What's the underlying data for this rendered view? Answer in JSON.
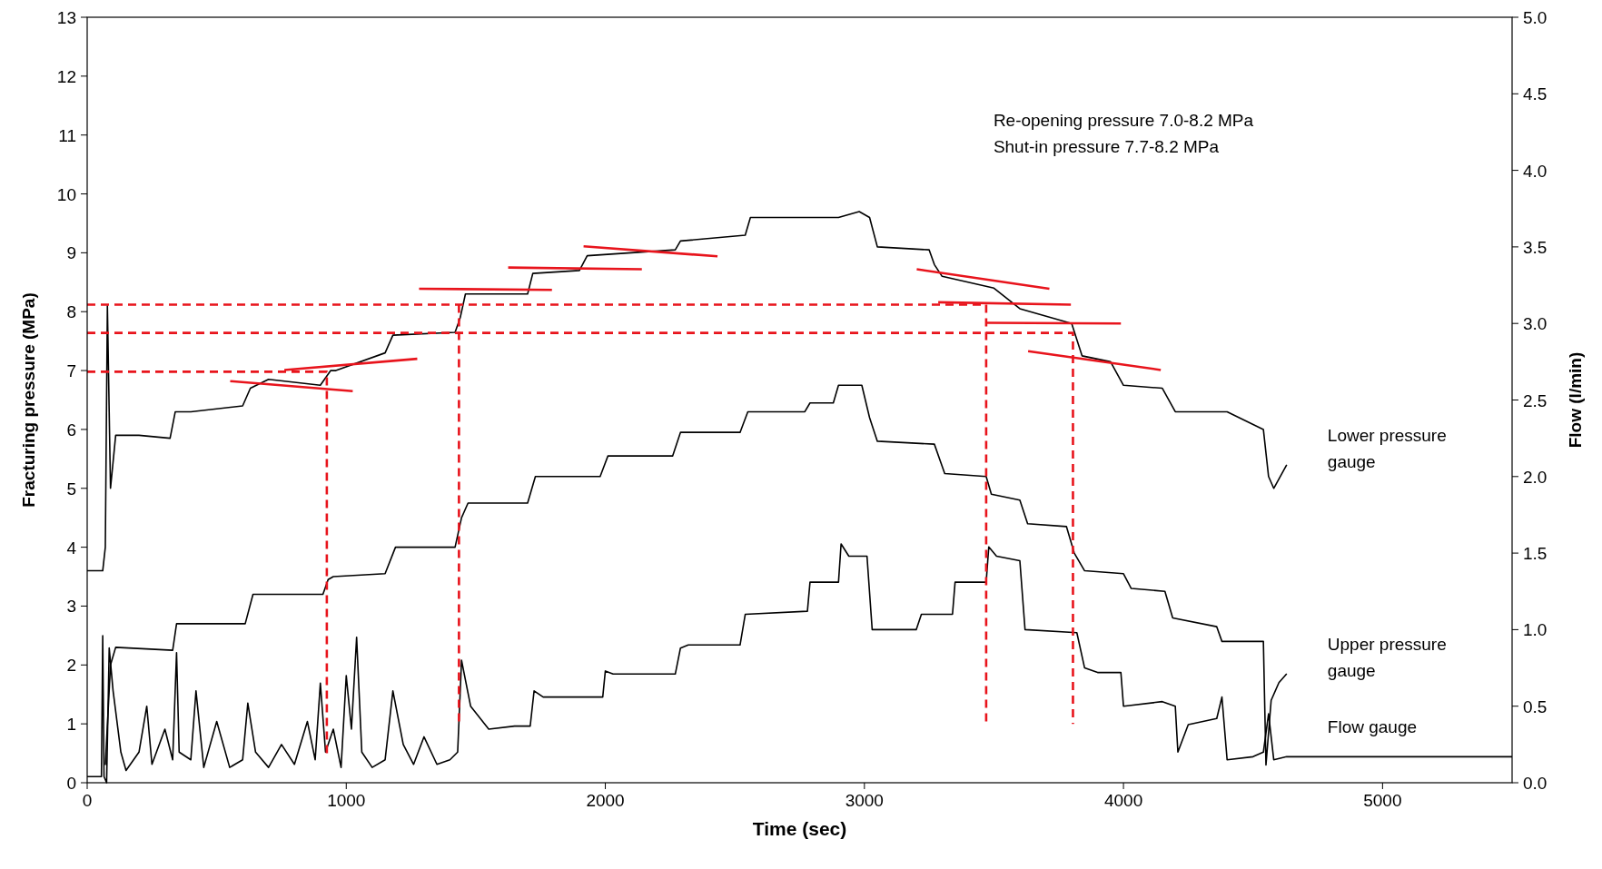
{
  "chart_data": {
    "type": "line",
    "xlabel": "Time (sec)",
    "ylabel": "Fracturing pressure (MPa)",
    "y2label": "Flow (l/min)",
    "xlim": [
      0,
      5500
    ],
    "xticks": [
      0,
      1000,
      2000,
      3000,
      4000,
      5000
    ],
    "ylim": [
      0,
      13
    ],
    "yticks": [
      0,
      1,
      2,
      3,
      4,
      5,
      6,
      7,
      8,
      9,
      10,
      11,
      12,
      13
    ],
    "y2lim": [
      0,
      5
    ],
    "y2ticks": [
      {
        "value": 0,
        "label": "0.0"
      },
      {
        "value": 0.5,
        "label": "0.5"
      },
      {
        "value": 1,
        "label": "1.0"
      },
      {
        "value": 1.5,
        "label": "1.5"
      },
      {
        "value": 2,
        "label": "2.0"
      },
      {
        "value": 2.5,
        "label": "2.5"
      },
      {
        "value": 3,
        "label": "3.0"
      },
      {
        "value": 3.5,
        "label": "3.5"
      },
      {
        "value": 4,
        "label": "4.0"
      },
      {
        "value": 4.5,
        "label": "4.5"
      },
      {
        "value": 5,
        "label": "5.0"
      }
    ],
    "grid": false,
    "annotations": [
      "Re-opening pressure 7.0-8.2 MPa",
      "Shut-in pressure 7.7-8.2 MPa"
    ],
    "series": [
      {
        "name": "Lower pressure gauge",
        "color": "#000000",
        "line_style": "solid",
        "x": [
          0,
          60,
          70,
          78,
          90,
          110,
          200,
          320,
          340,
          400,
          600,
          630,
          700,
          900,
          940,
          960,
          1150,
          1180,
          1420,
          1440,
          1460,
          1700,
          1720,
          1900,
          1930,
          2270,
          2290,
          2540,
          2560,
          2900,
          2980,
          3020,
          3050,
          3250,
          3270,
          3300,
          3500,
          3600,
          3800,
          3840,
          3950,
          4000,
          4150,
          4200,
          4400,
          4540,
          4560,
          4580,
          4630
        ],
        "values": [
          3.6,
          3.6,
          4.0,
          8.1,
          5.0,
          5.9,
          5.9,
          5.85,
          6.3,
          6.3,
          6.4,
          6.7,
          6.85,
          6.75,
          7.0,
          7.0,
          7.3,
          7.6,
          7.65,
          7.9,
          8.3,
          8.3,
          8.65,
          8.7,
          8.95,
          9.05,
          9.2,
          9.3,
          9.6,
          9.6,
          9.7,
          9.6,
          9.1,
          9.05,
          8.8,
          8.6,
          8.4,
          8.05,
          7.8,
          7.25,
          7.15,
          6.75,
          6.7,
          6.3,
          6.3,
          6.0,
          5.2,
          5.0,
          5.4
        ]
      },
      {
        "name": "Upper pressure gauge",
        "color": "#000000",
        "line_style": "solid",
        "x": [
          70,
          90,
          110,
          330,
          345,
          360,
          610,
          640,
          910,
          930,
          950,
          1150,
          1190,
          1420,
          1445,
          1470,
          1700,
          1730,
          1980,
          2010,
          2260,
          2290,
          2520,
          2550,
          2770,
          2790,
          2880,
          2900,
          2990,
          3020,
          3050,
          3270,
          3310,
          3470,
          3490,
          3600,
          3630,
          3780,
          3810,
          3850,
          4000,
          4030,
          4160,
          4190,
          4360,
          4380,
          4540,
          4550,
          4570,
          4600,
          4630
        ],
        "values": [
          0.3,
          2.0,
          2.3,
          2.25,
          2.7,
          2.7,
          2.7,
          3.2,
          3.2,
          3.45,
          3.5,
          3.55,
          4.0,
          4.0,
          4.5,
          4.75,
          4.75,
          5.2,
          5.2,
          5.55,
          5.55,
          5.95,
          5.95,
          6.3,
          6.3,
          6.45,
          6.45,
          6.75,
          6.75,
          6.2,
          5.8,
          5.75,
          5.25,
          5.2,
          4.9,
          4.8,
          4.4,
          4.35,
          3.9,
          3.6,
          3.55,
          3.3,
          3.25,
          2.8,
          2.65,
          2.4,
          2.4,
          0.3,
          1.4,
          1.7,
          1.85
        ]
      },
      {
        "name": "Flow gauge",
        "color": "#000000",
        "line_style": "solid",
        "axis": "y2",
        "x": [
          0,
          55,
          60,
          65,
          75,
          85,
          100,
          130,
          150,
          200,
          230,
          250,
          300,
          330,
          345,
          355,
          400,
          420,
          450,
          500,
          550,
          600,
          620,
          650,
          700,
          750,
          800,
          850,
          880,
          900,
          920,
          950,
          980,
          1000,
          1020,
          1040,
          1060,
          1100,
          1150,
          1180,
          1220,
          1260,
          1300,
          1350,
          1400,
          1430,
          1445,
          1480,
          1550,
          1650,
          1710,
          1725,
          1760,
          1990,
          2000,
          2030,
          2270,
          2290,
          2320,
          2520,
          2540,
          2780,
          2790,
          2900,
          2910,
          2940,
          3010,
          3030,
          3200,
          3220,
          3340,
          3350,
          3470,
          3480,
          3510,
          3600,
          3620,
          3820,
          3850,
          3900,
          3990,
          4000,
          4150,
          4200,
          4210,
          4250,
          4360,
          4380,
          4400,
          4500,
          4540,
          4560,
          4580,
          4630,
          5500
        ],
        "values": [
          0.04,
          0.04,
          0.96,
          0.04,
          0.0,
          0.88,
          0.6,
          0.2,
          0.08,
          0.2,
          0.5,
          0.12,
          0.35,
          0.15,
          0.85,
          0.2,
          0.15,
          0.6,
          0.1,
          0.4,
          0.1,
          0.15,
          0.52,
          0.2,
          0.1,
          0.25,
          0.12,
          0.4,
          0.15,
          0.65,
          0.2,
          0.35,
          0.1,
          0.7,
          0.35,
          0.95,
          0.2,
          0.1,
          0.15,
          0.6,
          0.25,
          0.12,
          0.3,
          0.12,
          0.15,
          0.2,
          0.8,
          0.5,
          0.35,
          0.37,
          0.37,
          0.6,
          0.56,
          0.56,
          0.73,
          0.71,
          0.71,
          0.88,
          0.9,
          0.9,
          1.1,
          1.12,
          1.31,
          1.31,
          1.56,
          1.48,
          1.48,
          1.0,
          1.0,
          1.1,
          1.1,
          1.31,
          1.31,
          1.54,
          1.48,
          1.45,
          1.0,
          0.98,
          0.75,
          0.72,
          0.72,
          0.5,
          0.53,
          0.5,
          0.2,
          0.38,
          0.42,
          0.56,
          0.15,
          0.17,
          0.2,
          0.45,
          0.15,
          0.17,
          0.17
        ]
      },
      {
        "color": "#e8141c",
        "line_style": "dashed",
        "x": [
          0,
          3470,
          3470
        ],
        "values": [
          8.12,
          8.12,
          1.0
        ]
      },
      {
        "color": "#e8141c",
        "line_style": "dashed",
        "x": [
          0,
          3805,
          3805
        ],
        "values": [
          7.64,
          7.64,
          1.0
        ]
      },
      {
        "color": "#e8141c",
        "line_style": "dashed",
        "x": [
          0,
          925,
          925
        ],
        "values": [
          6.98,
          6.98,
          0.43
        ]
      },
      {
        "color": "#e8141c",
        "line_style": "dashed",
        "x": [
          1435,
          1435
        ],
        "values": [
          8.12,
          1.0
        ]
      },
      {
        "color": "#e8141c",
        "line_style": "solid",
        "x": [
          552,
          1025
        ],
        "values": [
          6.82,
          6.65
        ]
      },
      {
        "color": "#e8141c",
        "line_style": "solid",
        "x": [
          761,
          1274
        ],
        "values": [
          7.01,
          7.2
        ]
      },
      {
        "color": "#e8141c",
        "line_style": "solid",
        "x": [
          1281,
          1794
        ],
        "values": [
          8.39,
          8.37
        ]
      },
      {
        "color": "#e8141c",
        "line_style": "solid",
        "x": [
          1625,
          2141
        ],
        "values": [
          8.75,
          8.72
        ]
      },
      {
        "color": "#e8141c",
        "line_style": "solid",
        "x": [
          1916,
          2433
        ],
        "values": [
          9.11,
          8.94
        ]
      },
      {
        "color": "#e8141c",
        "line_style": "solid",
        "x": [
          3202,
          3714
        ],
        "values": [
          8.72,
          8.39
        ]
      },
      {
        "color": "#e8141c",
        "line_style": "solid",
        "x": [
          3285,
          3797
        ],
        "values": [
          8.16,
          8.12
        ]
      },
      {
        "color": "#e8141c",
        "line_style": "solid",
        "x": [
          3470,
          3990
        ],
        "values": [
          7.81,
          7.8
        ]
      },
      {
        "color": "#e8141c",
        "line_style": "solid",
        "x": [
          3632,
          4144
        ],
        "values": [
          7.33,
          7.01
        ]
      }
    ]
  }
}
